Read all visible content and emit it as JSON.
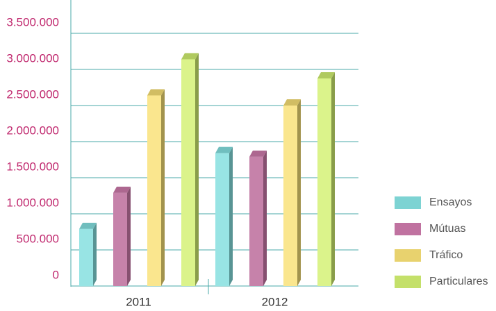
{
  "chart_data": {
    "type": "bar3d",
    "categories": [
      "2011",
      "2012"
    ],
    "series": [
      {
        "name": "Ensayos",
        "color": "#7dd3d3",
        "values": [
          790000,
          1840000
        ]
      },
      {
        "name": "Mútuas",
        "color": "#c072a0",
        "values": [
          1290000,
          1790000
        ]
      },
      {
        "name": "Tráfico",
        "color": "#e8d26e",
        "values": [
          2640000,
          2500000
        ]
      },
      {
        "name": "Particulares",
        "color": "#c4e06a",
        "values": [
          3140000,
          2875000
        ]
      }
    ],
    "ylim": [
      0,
      3500000
    ],
    "yticks": [
      0,
      {
        "value": 500000,
        "label": "500.000"
      },
      {
        "value": 1000000,
        "label": "1.000.000"
      },
      {
        "value": 1500000,
        "label": "1.500.000"
      },
      {
        "value": 2000000,
        "label": "2.000.000"
      },
      {
        "value": 2500000,
        "label": "2.500.000"
      },
      {
        "value": 3000000,
        "label": "3.000.000"
      },
      {
        "value": 3500000,
        "label": "3.500.000"
      }
    ],
    "grid": true,
    "legend": "right"
  }
}
